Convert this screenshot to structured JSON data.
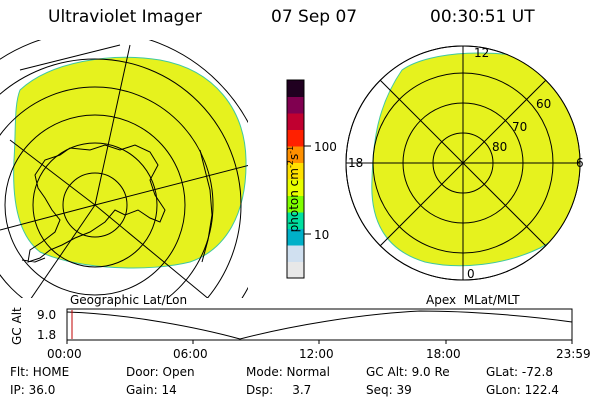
{
  "header": {
    "instrument": "Ultraviolet Imager",
    "date": "07 Sep 07",
    "time": "00:30:51 UT"
  },
  "colorbar": {
    "unit_label": "photon cm",
    "unit_sup1": "-2",
    "unit_mid": "s",
    "unit_sup2": "-1",
    "tick_100": "100",
    "tick_10": "10",
    "colors": [
      "#e8e8e8",
      "#d0e0f0",
      "#00b0c8",
      "#00e0a0",
      "#80ff00",
      "#e8ff00",
      "#ffe000",
      "#ff9000",
      "#ff2000",
      "#c00030",
      "#800050",
      "#200020"
    ]
  },
  "left_map": {
    "label": "Geographic Lat/Lon",
    "fill_color": "#e6f21e"
  },
  "right_map": {
    "label": "Apex  MLat/MLT",
    "fill_color": "#e6f21e",
    "mlt_12": "12",
    "mlt_18": "18",
    "mlt_6": "6",
    "mlt_0": "0",
    "lat_60": "60",
    "lat_70": "70",
    "lat_80": "80"
  },
  "altitude_plot": {
    "ylabel": "GC Alt",
    "y_top": "9.0",
    "y_bottom": "1.8",
    "x_ticks": [
      "00:00",
      "06:00",
      "12:00",
      "18:00",
      "23:59"
    ],
    "marker_color": "#c00000"
  },
  "status": {
    "flt": "Flt: HOME",
    "ip": "IP: 36.0",
    "door": "Door: Open",
    "gain": "Gain: 14",
    "mode": "Mode: Normal",
    "dsp": "Dsp:     3.7",
    "gcalt": "GC Alt: 9.0 Re",
    "seq": "Seq: 39",
    "glat": "GLat: -72.8",
    "glon": "GLon: 122.4"
  }
}
